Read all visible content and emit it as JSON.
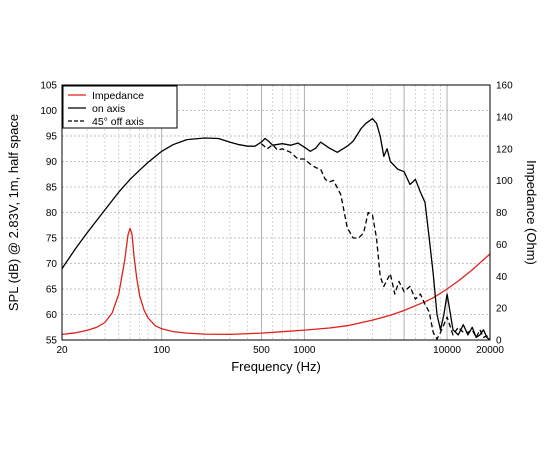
{
  "chart_data": {
    "type": "line",
    "title": "",
    "xlabel": "Frequency (Hz)",
    "ylabel_left": "SPL (dB) @ 2.83V, 1m, half space",
    "ylabel_right": "Impedance (Ohm)",
    "x_scale": "log",
    "xlim": [
      20,
      20000
    ],
    "ylim_left": [
      55,
      105
    ],
    "ylim_right": [
      0,
      160
    ],
    "x_ticks": [
      20,
      100,
      500,
      1000,
      10000,
      20000
    ],
    "x_tick_labels": [
      "20",
      "100",
      "500",
      "1000",
      "10000",
      "20000"
    ],
    "y_ticks_left": [
      55,
      60,
      65,
      70,
      75,
      80,
      85,
      90,
      95,
      100,
      105
    ],
    "y_tick_labels_left": [
      "55",
      "60",
      "65",
      "70",
      "75",
      "80",
      "85",
      "90",
      "95",
      "100",
      "105"
    ],
    "y_ticks_right": [
      0,
      20,
      40,
      60,
      80,
      100,
      120,
      140,
      160
    ],
    "y_tick_labels_right": [
      "0",
      "20",
      "40",
      "60",
      "80",
      "100",
      "120",
      "140",
      "160"
    ],
    "grid": true,
    "legend_position": "top-left",
    "series": [
      {
        "name": "Impedance",
        "axis": "right",
        "color": "#e0201b",
        "dash": "solid",
        "x": [
          20,
          25,
          30,
          35,
          40,
          45,
          50,
          55,
          58,
          60,
          62,
          64,
          67,
          70,
          75,
          80,
          90,
          100,
          120,
          150,
          200,
          300,
          500,
          700,
          1000,
          1500,
          2000,
          3000,
          4000,
          5000,
          6000,
          7000,
          8000,
          10000,
          12000,
          15000,
          20000
        ],
        "y": [
          3.5,
          4.5,
          6,
          8,
          11,
          17,
          29,
          50,
          66,
          70,
          66,
          52,
          38,
          28,
          19,
          14,
          9,
          7,
          5.3,
          4.3,
          3.7,
          3.5,
          4.3,
          5.2,
          6.2,
          7.5,
          9,
          12.5,
          15.5,
          18.5,
          21.5,
          24,
          26.5,
          32,
          37,
          44,
          54
        ]
      },
      {
        "name": "on axis",
        "axis": "left",
        "color": "#000000",
        "dash": "solid",
        "x": [
          20,
          25,
          30,
          40,
          50,
          60,
          70,
          80,
          100,
          120,
          150,
          200,
          250,
          300,
          350,
          400,
          450,
          500,
          530,
          560,
          600,
          700,
          800,
          900,
          1000,
          1100,
          1200,
          1300,
          1500,
          1700,
          2000,
          2200,
          2500,
          2700,
          3000,
          3200,
          3400,
          3600,
          3800,
          4000,
          4500,
          5000,
          5500,
          6000,
          6500,
          7000,
          7500,
          8000,
          8500,
          9000,
          9500,
          10000,
          11000,
          12000,
          13000,
          14000,
          15000,
          16000,
          17000,
          18000,
          19000,
          20000
        ],
        "y": [
          69,
          73,
          76,
          80.5,
          84,
          86.5,
          88.3,
          89.8,
          92,
          93.3,
          94.3,
          94.6,
          94.5,
          93.8,
          93.3,
          93,
          93,
          93.8,
          94.5,
          94,
          93.2,
          93.5,
          93.2,
          93.6,
          92.8,
          92,
          92.6,
          93.8,
          92.6,
          91.8,
          93,
          94,
          96.5,
          97.5,
          98.4,
          97.5,
          95,
          91,
          92.5,
          90,
          88.5,
          88,
          85.5,
          86.5,
          84,
          82,
          75,
          68,
          60,
          57,
          60,
          64,
          57,
          56,
          58,
          56,
          57.5,
          55.5,
          56,
          57,
          55.5,
          55
        ]
      },
      {
        "name": "45° off axis",
        "axis": "left",
        "color": "#000000",
        "dash": "dashed",
        "x": [
          500,
          550,
          600,
          650,
          700,
          800,
          900,
          1000,
          1100,
          1200,
          1300,
          1400,
          1500,
          1600,
          1800,
          2000,
          2200,
          2400,
          2600,
          2800,
          3000,
          3200,
          3400,
          3600,
          4000,
          4300,
          4600,
          5000,
          5500,
          6000,
          6500,
          7000,
          7500,
          8000,
          8500,
          9000,
          10000,
          11000,
          12000,
          13000,
          14000,
          15000,
          16000,
          17000,
          18000,
          19000,
          20000
        ],
        "y": [
          93.5,
          92.5,
          93.3,
          92.2,
          92.5,
          91.8,
          90.5,
          90.5,
          89.5,
          88.8,
          88.5,
          86.5,
          86,
          86.3,
          83.5,
          77,
          75,
          75,
          76,
          80,
          79.5,
          75,
          67.5,
          65.5,
          68,
          64,
          66.5,
          64.5,
          65.5,
          63,
          64,
          62,
          60.5,
          56.5,
          55.2,
          56.5,
          59.5,
          56,
          57.5,
          56.5,
          56.5,
          57,
          55.5,
          57,
          55.5,
          55.8,
          55
        ]
      }
    ]
  }
}
